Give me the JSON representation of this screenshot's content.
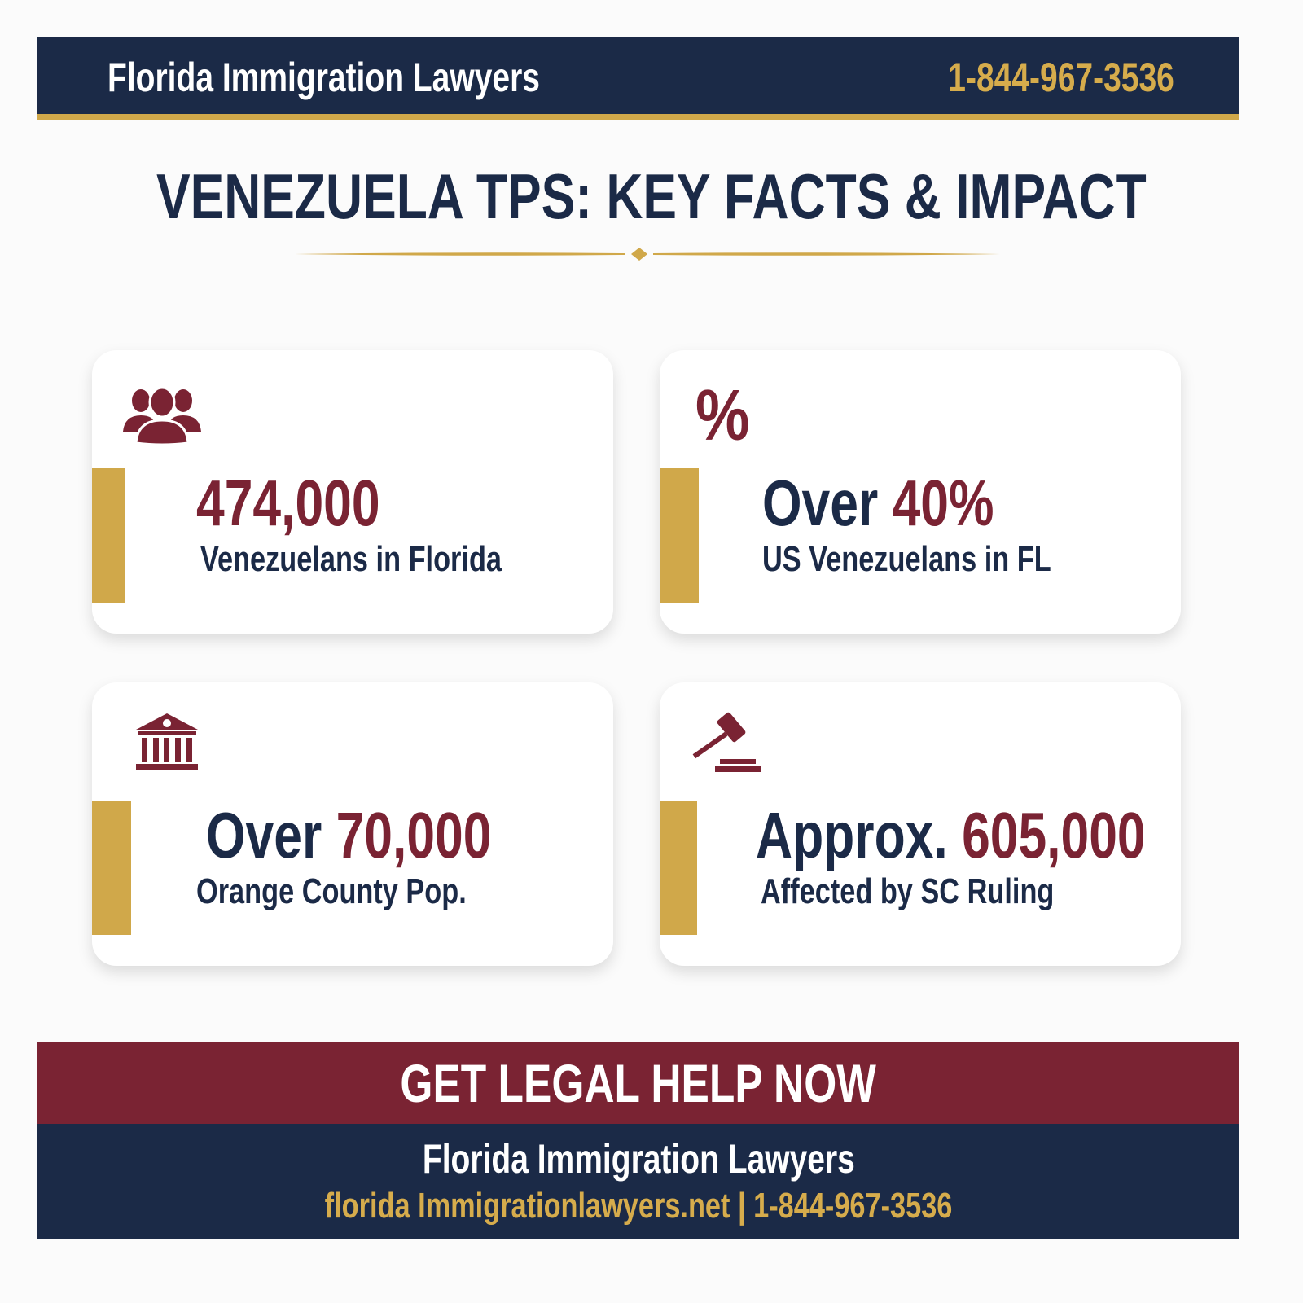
{
  "header": {
    "brand": "Florida Immigration Lawyers",
    "phone": "1-844-967-3536"
  },
  "title": "VENEZUELA TPS: KEY FACTS & IMPACT",
  "facts": [
    {
      "icon": "people-group-icon",
      "prefix": "",
      "value": "474,000",
      "label": "Venezuelans in Florida"
    },
    {
      "icon": "percent-icon",
      "prefix": "Over ",
      "value": "40%",
      "label": "US Venezuelans in FL"
    },
    {
      "icon": "government-building-icon",
      "prefix": "Over ",
      "value": "70,000",
      "label": "Orange County Pop."
    },
    {
      "icon": "gavel-icon",
      "prefix": "Approx. ",
      "value": "605,000",
      "label": "Affected by SC Ruling"
    }
  ],
  "cta": {
    "label": "GET LEGAL HELP NOW"
  },
  "footer": {
    "name": "Florida Immigration Lawyers",
    "website": "florida Immigrationlawyers.net",
    "separator": " | ",
    "phone": "1-844-967-3536"
  },
  "colors": {
    "navy": "#1b2a47",
    "gold": "#d0a84a",
    "maroon": "#7a2333"
  }
}
